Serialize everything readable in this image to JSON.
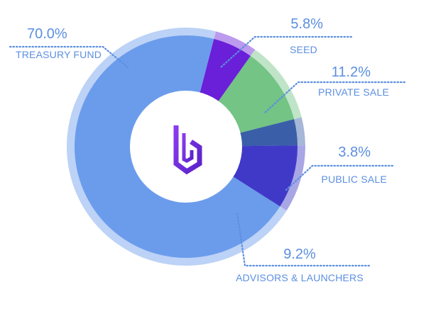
{
  "chart_data": {
    "type": "pie",
    "style": "donut",
    "series": [
      {
        "name": "TREASURY FUND",
        "value": 70.0,
        "value_label": "70.0%",
        "color": "#6b9cec"
      },
      {
        "name": "SEED",
        "value": 5.8,
        "value_label": "5.8%",
        "color": "#6a1fd8"
      },
      {
        "name": "PRIVATE SALE",
        "value": 11.2,
        "value_label": "11.2%",
        "color": "#73c485"
      },
      {
        "name": "PUBLIC SALE",
        "value": 3.8,
        "value_label": "3.8%",
        "color": "#3a5fa8"
      },
      {
        "name": "ADVISORS & LAUNCHERS",
        "value": 9.2,
        "value_label": "9.2%",
        "color": "#4039c8"
      }
    ],
    "label_color": "#5b8fe0",
    "center_logo": "brand-logo-icon",
    "legend": "callout-labels"
  }
}
